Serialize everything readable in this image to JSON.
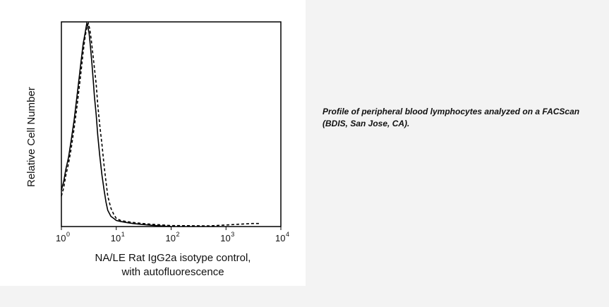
{
  "chart_data": {
    "type": "line",
    "ylabel": "Relative Cell Number",
    "xlabel_line1": "NA/LE Rat IgG2a isotype control,",
    "xlabel_line2": "with autofluorescence",
    "x_scale": "log",
    "xlim": [
      1,
      10000
    ],
    "ylim": [
      0,
      100
    ],
    "tick_labels": [
      {
        "base": "10",
        "exp": "0",
        "value": 1
      },
      {
        "base": "10",
        "exp": "1",
        "value": 10
      },
      {
        "base": "10",
        "exp": "2",
        "value": 100
      },
      {
        "base": "10",
        "exp": "3",
        "value": 1000
      },
      {
        "base": "10",
        "exp": "4",
        "value": 10000
      }
    ],
    "grid": false,
    "series": [
      {
        "style": "solid",
        "x": [
          1.0,
          1.1,
          1.2,
          1.35,
          1.5,
          1.7,
          1.9,
          2.1,
          2.3,
          2.5,
          2.7,
          2.9,
          3.0,
          3.2,
          3.4,
          3.6,
          3.8,
          4.0,
          4.3,
          4.6,
          5.0,
          5.5,
          6.0,
          6.5,
          7.0,
          8.0,
          9.0,
          10.0,
          12.0,
          15.0,
          20.0,
          30.0,
          50.0,
          100.0
        ],
        "y": [
          18,
          22,
          28,
          34,
          42,
          52,
          63,
          73,
          82,
          90,
          95,
          100,
          99,
          95,
          88,
          80,
          72,
          64,
          55,
          45,
          35,
          25,
          18,
          12,
          8,
          5,
          4,
          3,
          2.5,
          2,
          1.5,
          1,
          0.5,
          0
        ]
      },
      {
        "style": "dashed",
        "x": [
          1.0,
          1.1,
          1.2,
          1.35,
          1.5,
          1.7,
          1.9,
          2.1,
          2.3,
          2.5,
          2.7,
          2.9,
          3.1,
          3.3,
          3.5,
          3.7,
          4.0,
          4.3,
          4.6,
          5.0,
          5.5,
          6.0,
          6.5,
          7.0,
          8.0,
          9.0,
          10.0,
          12.0,
          15.0,
          20.0,
          30.0,
          50.0,
          100.0,
          500.0,
          3000.0,
          4000.0
        ],
        "y": [
          15,
          19,
          25,
          31,
          38,
          48,
          58,
          68,
          77,
          86,
          93,
          98,
          100,
          97,
          92,
          86,
          78,
          70,
          60,
          50,
          40,
          30,
          22,
          15,
          9,
          6,
          4,
          3,
          2.5,
          2,
          1.5,
          1,
          0.5,
          0.3,
          1.5,
          1.5
        ]
      }
    ]
  },
  "caption": "Profile of peripheral blood lymphocytes analyzed on a FACScan (BDIS, San Jose, CA)."
}
